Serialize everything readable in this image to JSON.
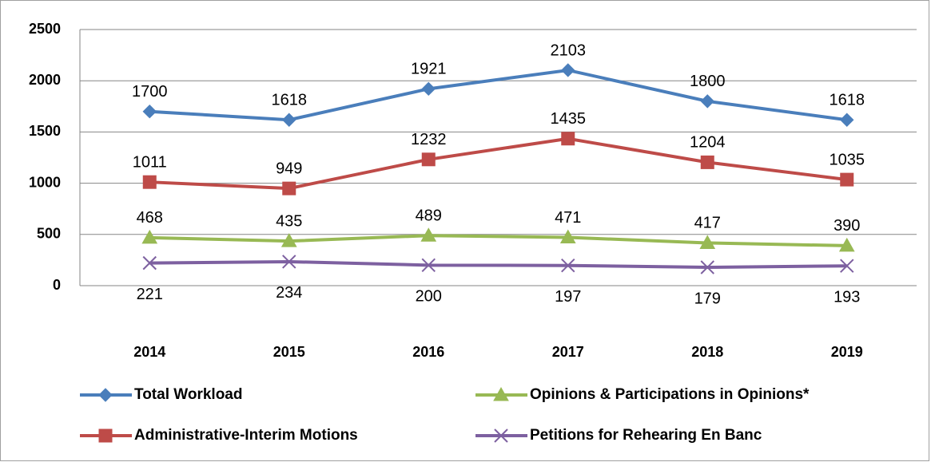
{
  "chart_data": {
    "type": "line",
    "categories": [
      "2014",
      "2015",
      "2016",
      "2017",
      "2018",
      "2019"
    ],
    "series": [
      {
        "name": "Total Workload",
        "color": "#4a7ebb",
        "marker": "diamond",
        "label_position": "above",
        "values": [
          1700,
          1618,
          1921,
          2103,
          1800,
          1618
        ]
      },
      {
        "name": "Administrative-Interim Motions",
        "color": "#be4b48",
        "marker": "square",
        "label_position": "above",
        "values": [
          1011,
          949,
          1232,
          1435,
          1204,
          1035
        ]
      },
      {
        "name": "Opinions & Participations in Opinions*",
        "color": "#98b954",
        "marker": "triangle",
        "label_position": "above",
        "values": [
          468,
          435,
          489,
          471,
          417,
          390
        ]
      },
      {
        "name": "Petitions for Rehearing En Banc",
        "color": "#7d60a0",
        "marker": "x",
        "label_position": "below",
        "values": [
          221,
          234,
          200,
          197,
          179,
          193
        ]
      }
    ],
    "ylim": [
      0,
      2500
    ],
    "yticks": [
      0,
      500,
      1000,
      1500,
      2000,
      2500
    ],
    "grid": true,
    "legend": "bottom"
  }
}
